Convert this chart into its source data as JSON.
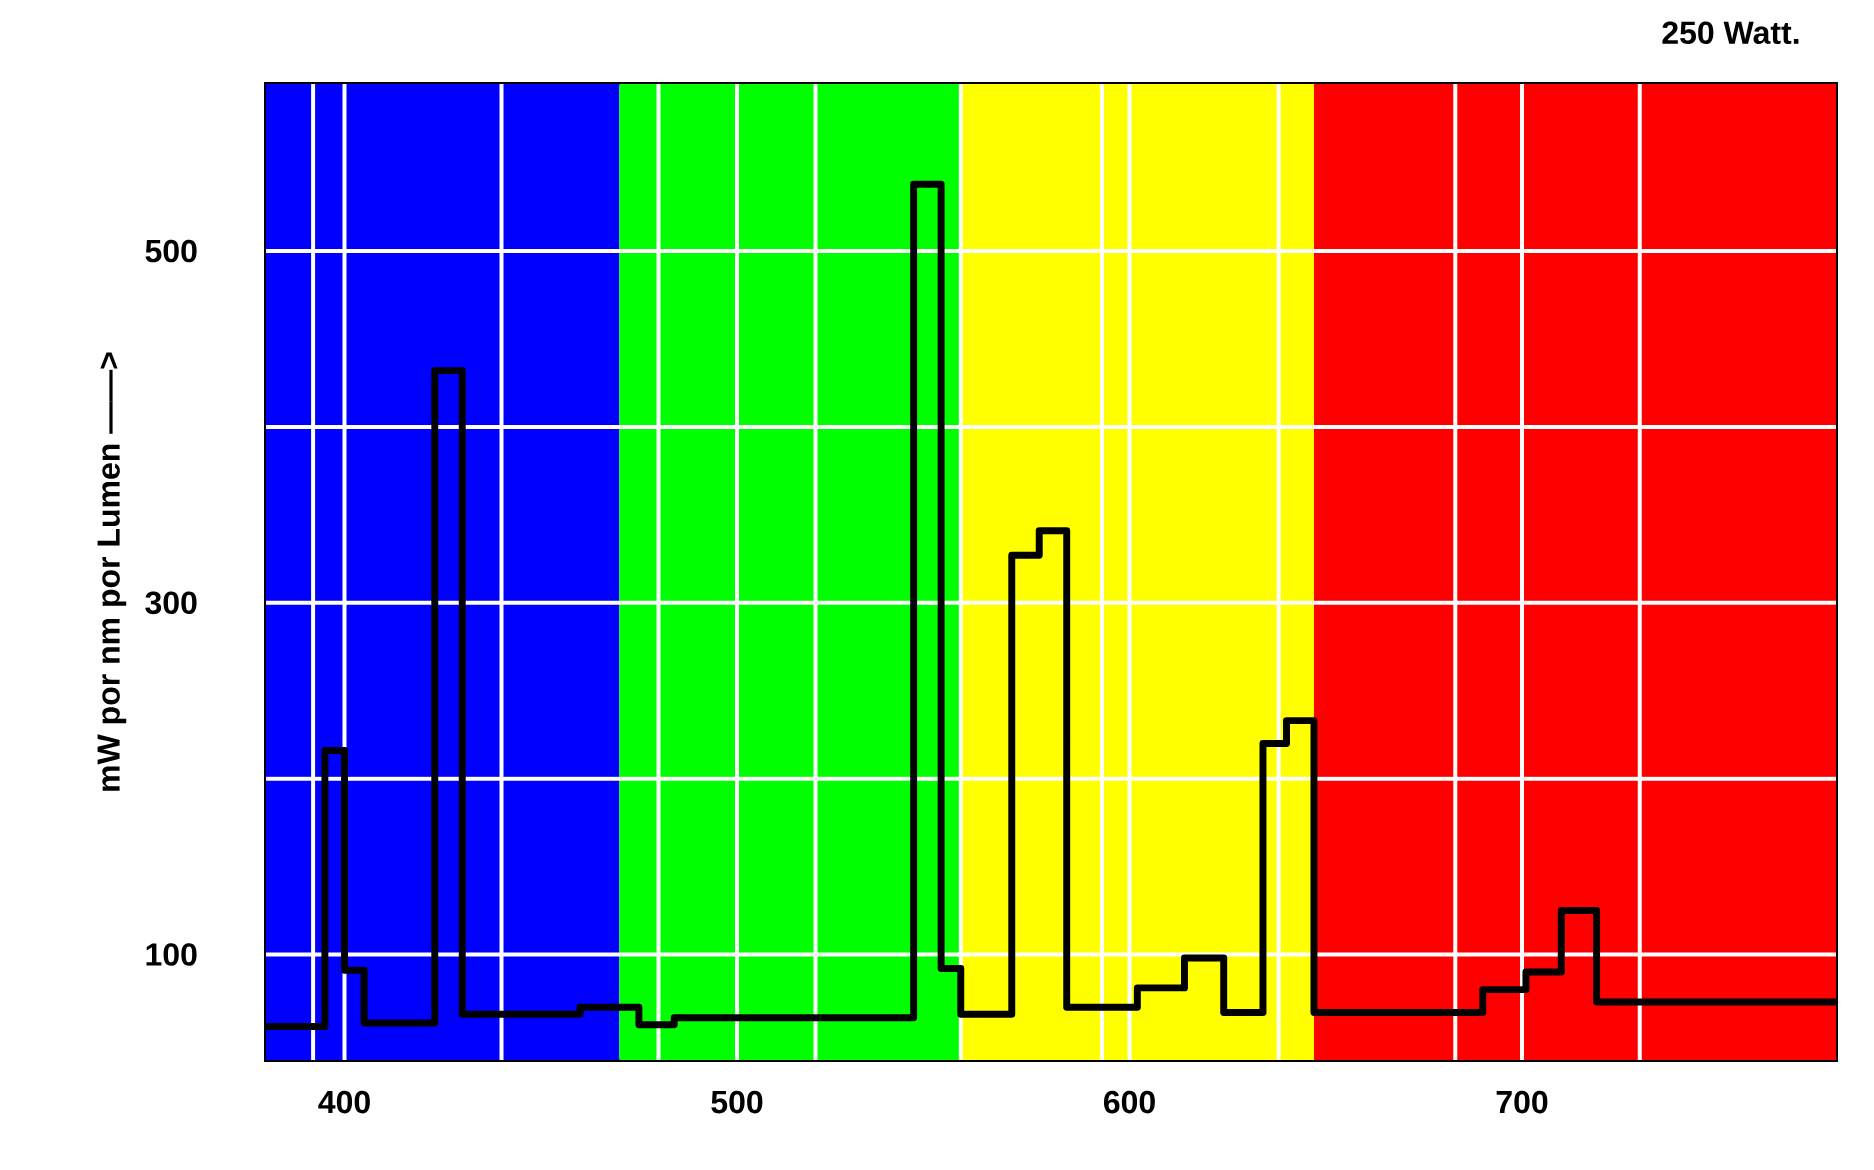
{
  "chart_data": {
    "type": "step",
    "title": "250 Watt.",
    "ylabel": "mW por nm por Lumen ——>",
    "x": [
      380,
      395,
      400,
      405,
      423,
      430,
      460,
      475,
      484,
      545,
      552,
      557,
      570,
      577,
      584,
      602,
      614,
      624,
      634,
      640,
      647,
      690,
      701,
      710,
      719,
      780
    ],
    "values": [
      59,
      216,
      91,
      61,
      432,
      66,
      70,
      60,
      64,
      538,
      92,
      66,
      327,
      341,
      70,
      81,
      98,
      67,
      220,
      233,
      67,
      80,
      90,
      125,
      73,
      73
    ],
    "color": "#000000",
    "xlim": [
      380,
      780
    ],
    "ylim": [
      40,
      595
    ],
    "xticks": [
      {
        "value": 392,
        "label": null
      },
      400,
      {
        "value": 440,
        "label": null
      },
      {
        "value": 480,
        "label": null
      },
      500,
      {
        "value": 520,
        "label": null
      },
      {
        "value": 557,
        "label": null
      },
      {
        "value": 593,
        "label": null
      },
      600,
      {
        "value": 638,
        "label": null
      },
      {
        "value": 683,
        "label": null
      },
      700,
      {
        "value": 730,
        "label": null
      }
    ],
    "yticks": [
      100,
      {
        "value": 200,
        "label": null
      },
      300,
      {
        "value": 400,
        "label": null
      },
      500
    ],
    "grid": true,
    "bands": [
      {
        "axis": "x",
        "from": 380,
        "to": 470,
        "color": "#0000ff"
      },
      {
        "axis": "x",
        "from": 470,
        "to": 557,
        "color": "#00ff00"
      },
      {
        "axis": "x",
        "from": 557,
        "to": 647,
        "color": "#ffff00"
      },
      {
        "axis": "x",
        "from": 647,
        "to": 780,
        "color": "#ff0000"
      }
    ]
  }
}
